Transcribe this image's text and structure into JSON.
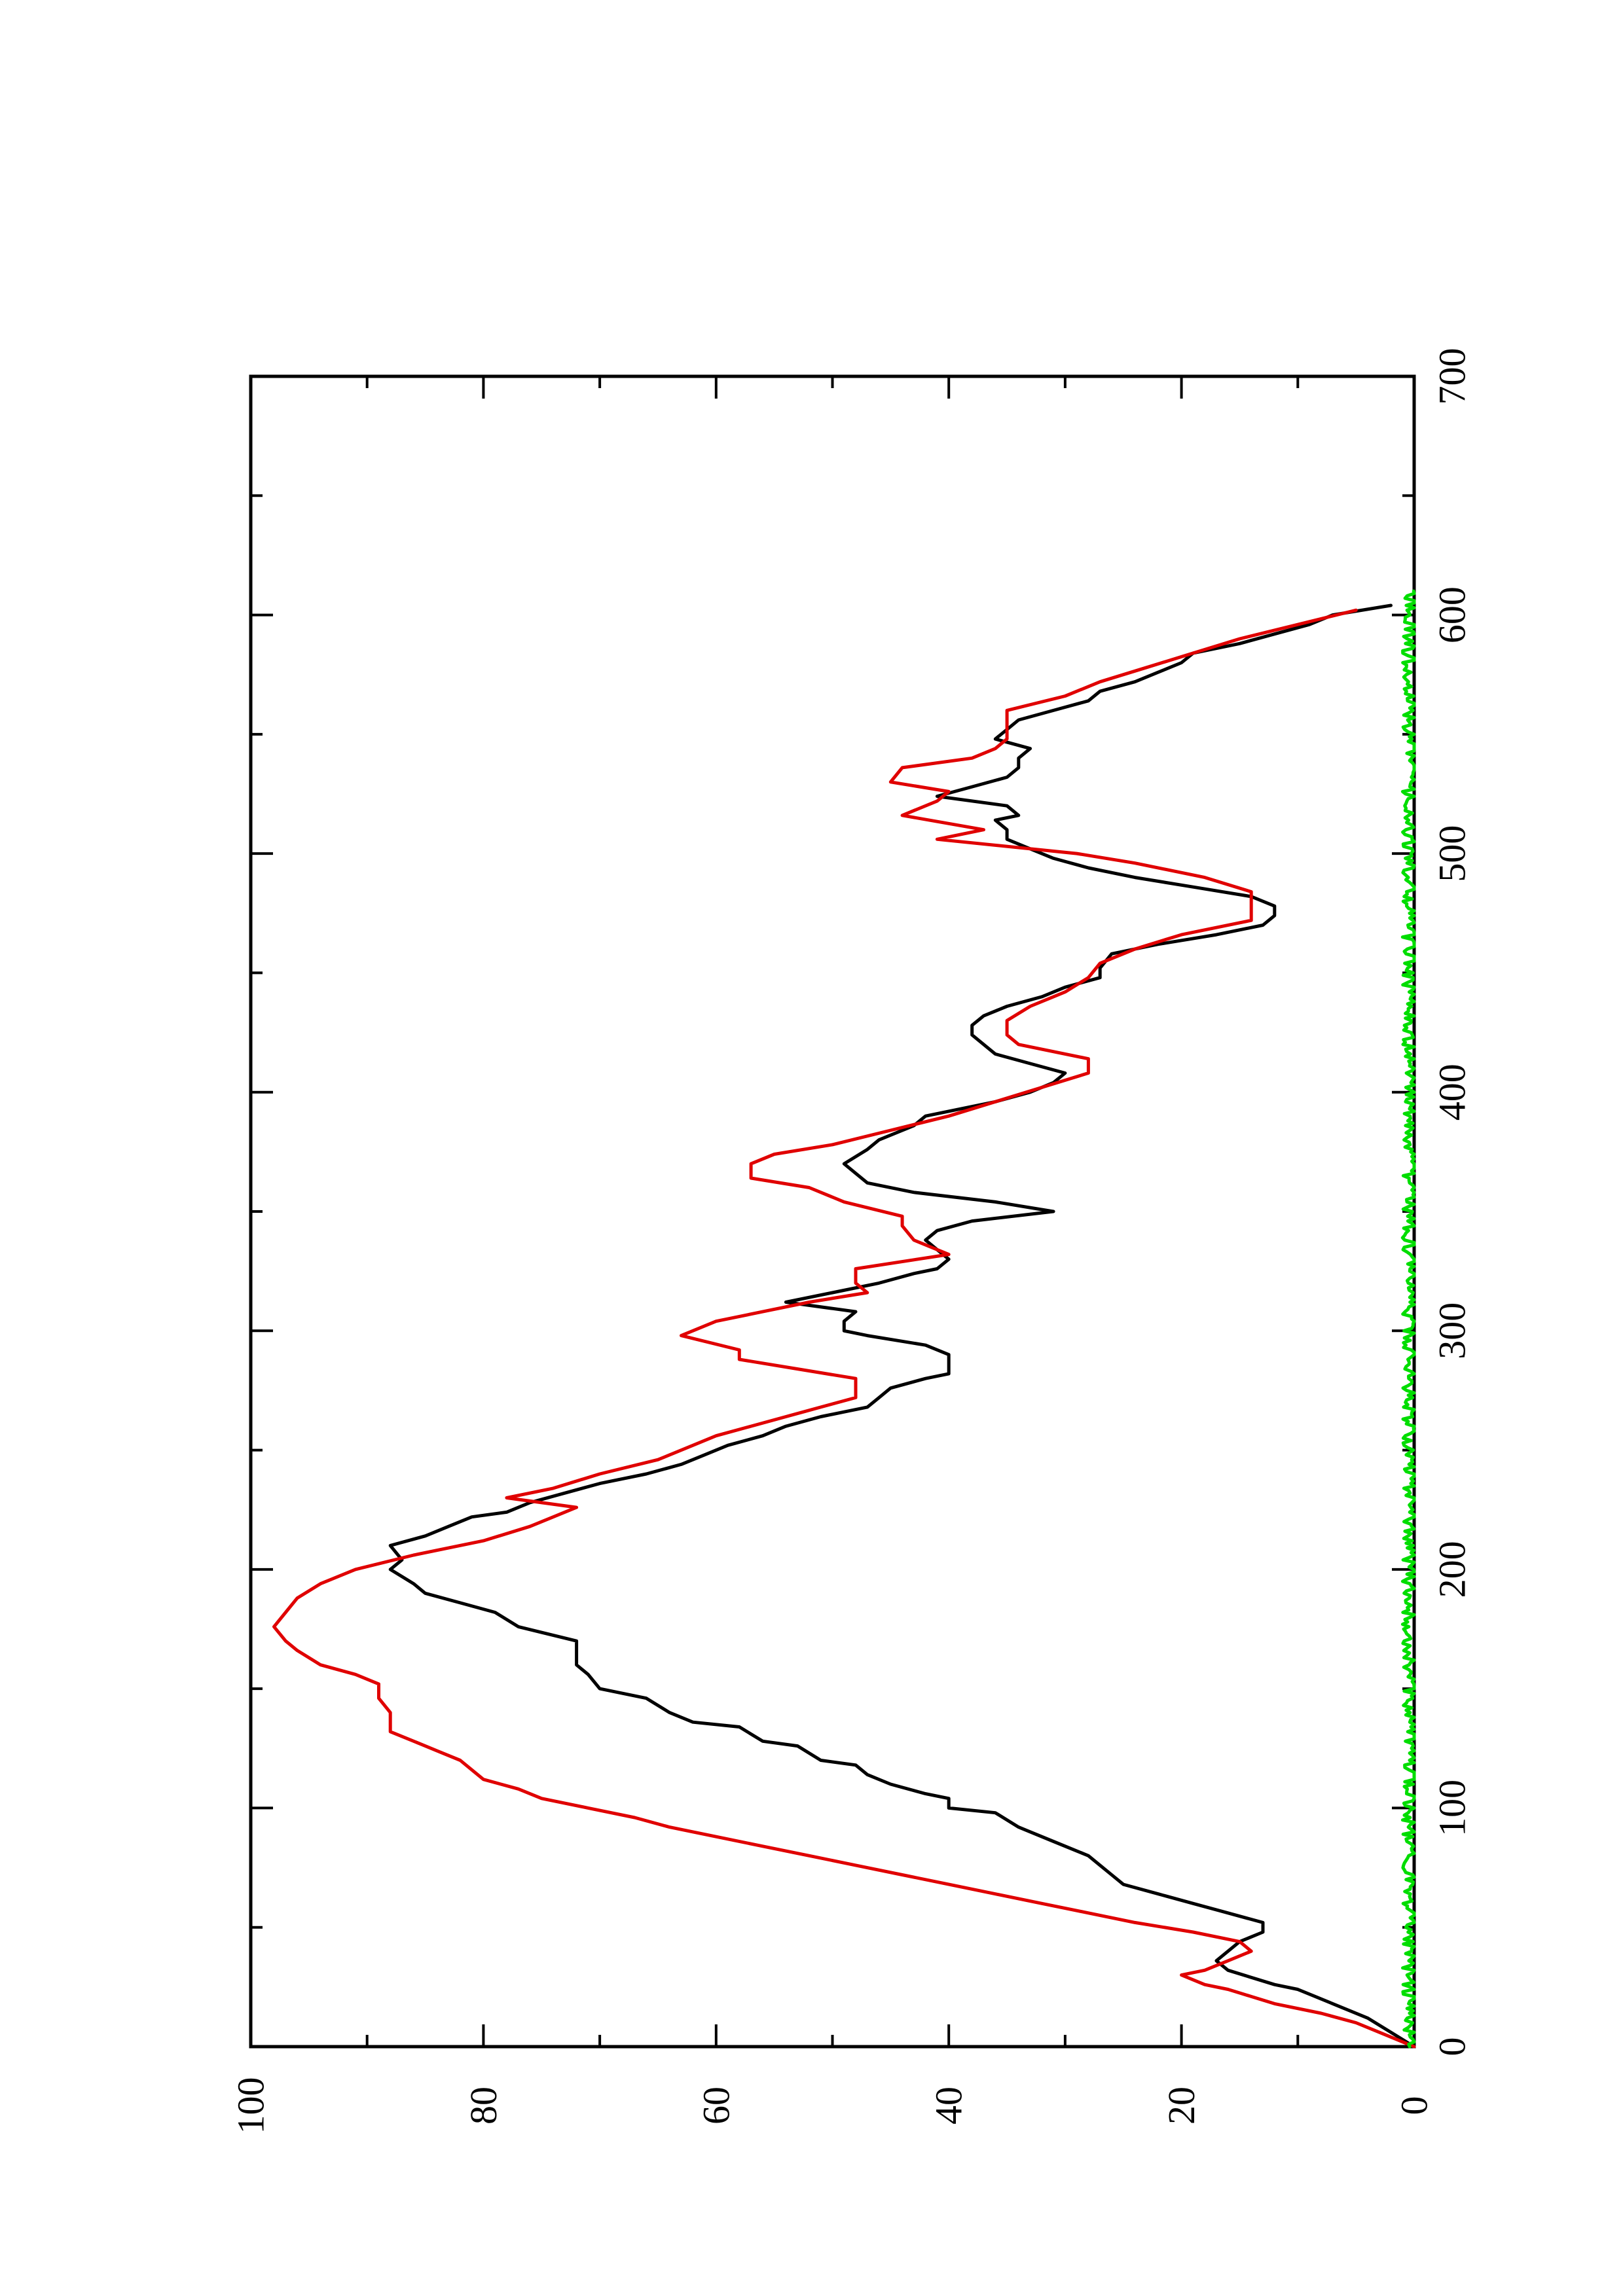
{
  "chart_data": {
    "type": "line",
    "orientation": "rotated-90-ccw",
    "title": "",
    "xlabel": "",
    "ylabel": "",
    "xlim": [
      0,
      700
    ],
    "ylim": [
      0,
      100
    ],
    "x_ticks": [
      0,
      100,
      200,
      300,
      400,
      500,
      600,
      700
    ],
    "x_minor_ticks": [
      50,
      150,
      250,
      350,
      450,
      550,
      650
    ],
    "y_ticks": [
      0,
      20,
      40,
      60,
      80,
      100
    ],
    "y_minor_ticks": [
      10,
      30,
      50,
      70,
      90
    ],
    "x_tick_labels": [
      "0",
      "100",
      "200",
      "300",
      "400",
      "500",
      "600",
      "700"
    ],
    "y_tick_labels": [
      "0",
      "20",
      "40",
      "60",
      "80",
      "100"
    ],
    "grid": false,
    "legend": "none",
    "colors": {
      "black_series": "#000000",
      "red_series": "#e00000",
      "green_series": "#00dd00"
    },
    "series": [
      {
        "color": "#000000",
        "x": [
          0,
          6,
          12,
          18,
          24,
          26,
          32,
          36,
          40,
          44,
          48,
          52,
          56,
          60,
          64,
          68,
          72,
          76,
          80,
          86,
          92,
          98,
          100,
          104,
          106,
          110,
          114,
          118,
          120,
          126,
          128,
          134,
          136,
          140,
          146,
          150,
          156,
          160,
          164,
          170,
          176,
          182,
          186,
          190,
          194,
          200,
          204,
          210,
          214,
          218,
          222,
          224,
          228,
          232,
          236,
          240,
          244,
          248,
          252,
          256,
          260,
          264,
          268,
          272,
          276,
          280,
          282,
          290,
          294,
          298,
          300,
          304,
          308,
          312,
          316,
          320,
          324,
          326,
          330,
          334,
          338,
          342,
          346,
          350,
          354,
          358,
          362,
          366,
          370,
          376,
          380,
          386,
          390,
          396,
          400,
          404,
          408,
          412,
          416,
          420,
          424,
          428,
          432,
          436,
          440,
          444,
          448,
          452,
          458,
          462,
          466,
          470,
          474,
          478,
          482,
          486,
          490,
          494,
          498,
          502,
          506,
          510,
          514,
          516,
          520,
          524,
          528,
          532,
          536,
          540,
          544,
          548,
          552,
          556,
          560,
          564,
          568,
          572,
          576,
          580,
          584,
          588,
          592,
          596,
          600,
          604
        ],
        "y": [
          0,
          2,
          4,
          7,
          10,
          12,
          16,
          17,
          16,
          15,
          13,
          13,
          16,
          19,
          22,
          25,
          26,
          27,
          28,
          31,
          34,
          36,
          40,
          40,
          42,
          45,
          47,
          48,
          51,
          53,
          56,
          58,
          62,
          64,
          66,
          70,
          71,
          72,
          72,
          72,
          77,
          79,
          82,
          85,
          86,
          88,
          87,
          88,
          85,
          83,
          81,
          78,
          76,
          73,
          70,
          66,
          63,
          61,
          59,
          56,
          54,
          51,
          47,
          46,
          45,
          42,
          40,
          40,
          42,
          47,
          49,
          49,
          48,
          54,
          50,
          46,
          43,
          41,
          40,
          41,
          42,
          41,
          38,
          31,
          36,
          43,
          47,
          48,
          49,
          47,
          46,
          43,
          42,
          36,
          33,
          31,
          30,
          33,
          36,
          37,
          38,
          38,
          37,
          35,
          32,
          30,
          27,
          27,
          26,
          22,
          17,
          13,
          12,
          12,
          14,
          19,
          24,
          28,
          31,
          33,
          35,
          35,
          36,
          34,
          35,
          41,
          38,
          35,
          34,
          34,
          33,
          36,
          35,
          34,
          31,
          28,
          27,
          24,
          22,
          20,
          19,
          15,
          12,
          9,
          7,
          2
        ],
        "name": ""
      },
      {
        "color": "#e00000",
        "x": [
          0,
          6,
          10,
          14,
          18,
          24,
          26,
          30,
          32,
          36,
          40,
          44,
          48,
          52,
          56,
          60,
          64,
          68,
          72,
          76,
          80,
          84,
          88,
          92,
          96,
          100,
          104,
          108,
          112,
          116,
          120,
          124,
          128,
          132,
          136,
          140,
          146,
          152,
          156,
          160,
          166,
          170,
          176,
          182,
          188,
          194,
          200,
          206,
          212,
          218,
          222,
          226,
          230,
          234,
          240,
          246,
          252,
          256,
          260,
          264,
          268,
          272,
          276,
          280,
          284,
          288,
          292,
          298,
          304,
          308,
          312,
          316,
          320,
          326,
          332,
          338,
          344,
          348,
          354,
          360,
          364,
          370,
          374,
          378,
          384,
          390,
          396,
          402,
          408,
          414,
          420,
          424,
          430,
          436,
          442,
          448,
          454,
          460,
          466,
          472,
          478,
          484,
          490,
          496,
          500,
          506,
          510,
          516,
          522,
          526,
          530,
          536,
          540,
          544,
          548,
          554,
          560,
          566,
          572,
          578,
          584,
          590,
          596,
          602
        ],
        "y": [
          0,
          3,
          5,
          8,
          12,
          16,
          18,
          20,
          18,
          16,
          14,
          15,
          19,
          24,
          28,
          32,
          36,
          40,
          44,
          48,
          52,
          56,
          60,
          64,
          67,
          71,
          75,
          77,
          80,
          81,
          82,
          84,
          86,
          88,
          88,
          88,
          89,
          89,
          91,
          94,
          96,
          97,
          98,
          97,
          96,
          94,
          91,
          86,
          80,
          76,
          74,
          72,
          78,
          74,
          70,
          65,
          62,
          60,
          57,
          54,
          51,
          48,
          48,
          48,
          53,
          58,
          58,
          63,
          60,
          56,
          52,
          47,
          48,
          48,
          40,
          43,
          44,
          44,
          49,
          52,
          57,
          57,
          55,
          50,
          45,
          40,
          36,
          32,
          28,
          28,
          34,
          35,
          35,
          33,
          30,
          28,
          27,
          24,
          20,
          14,
          14,
          14,
          18,
          24,
          29,
          41,
          37,
          44,
          41,
          40,
          45,
          44,
          38,
          36,
          35,
          35,
          35,
          30,
          27,
          23,
          19,
          15,
          10,
          5
        ],
        "name": ""
      },
      {
        "color": "#00dd00",
        "x_range": [
          0,
          610
        ],
        "baseline": 0.4,
        "noise_amplitude": 0.6,
        "name": ""
      }
    ]
  }
}
